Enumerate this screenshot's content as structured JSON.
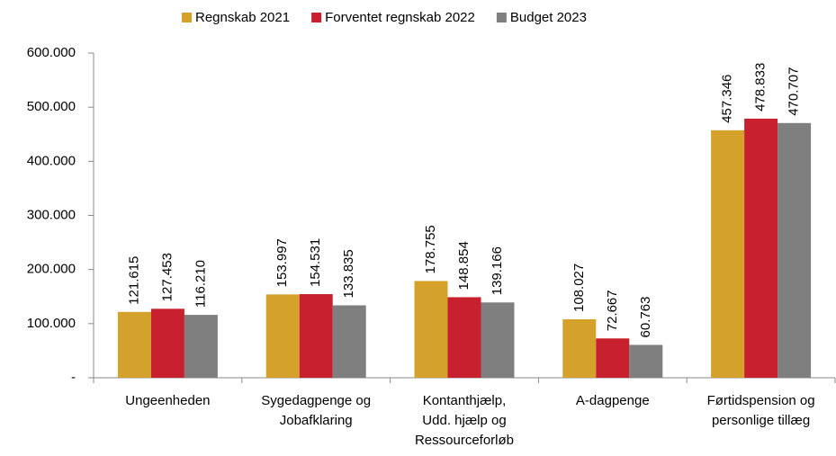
{
  "chart_data": {
    "type": "bar",
    "categories": [
      [
        "Ungeenheden"
      ],
      [
        "Sygedagpenge og",
        "Jobafklaring"
      ],
      [
        "Kontanthjælp,",
        "Udd. hjælp og",
        "Ressourceforløb"
      ],
      [
        "A-dagpenge"
      ],
      [
        "Førtidspension og",
        "personlige tillæg"
      ]
    ],
    "series": [
      {
        "name": "Regnskab 2021",
        "color": "#d4a12a",
        "values": [
          121615,
          153997,
          178755,
          108027,
          457346
        ],
        "value_labels": [
          "121.615",
          "153.997",
          "178.755",
          "108.027",
          "457.346"
        ]
      },
      {
        "name": "Forventet regnskab 2022",
        "color": "#c8202f",
        "values": [
          127453,
          154531,
          148854,
          72667,
          478833
        ],
        "value_labels": [
          "127.453",
          "154.531",
          "148.854",
          "72.667",
          "478.833"
        ]
      },
      {
        "name": "Budget 2023",
        "color": "#7f7f7f",
        "values": [
          116210,
          133835,
          139166,
          60763,
          470707
        ],
        "value_labels": [
          "116.210",
          "133.835",
          "139.166",
          "60.763",
          "470.707"
        ]
      }
    ],
    "ylim": [
      0,
      600000
    ],
    "yticks": [
      {
        "value": 0,
        "label": "-"
      },
      {
        "value": 100000,
        "label": "100.000"
      },
      {
        "value": 200000,
        "label": "200.000"
      },
      {
        "value": 300000,
        "label": "300.000"
      },
      {
        "value": 400000,
        "label": "400.000"
      },
      {
        "value": 500000,
        "label": "500.000"
      },
      {
        "value": 600000,
        "label": "600.000"
      }
    ],
    "grid": false,
    "legend": "top"
  }
}
